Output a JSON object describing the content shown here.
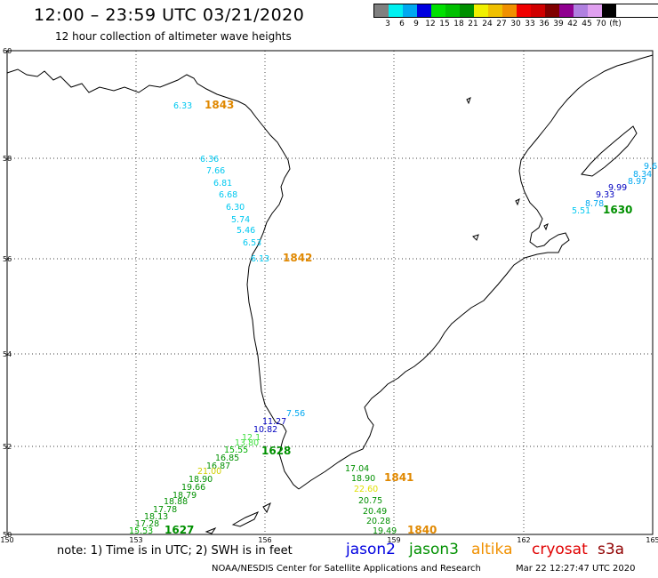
{
  "header": {
    "title": "12:00 – 23:59 UTC 03/21/2020",
    "subtitle": "12 hour collection of altimeter wave heights"
  },
  "legend": {
    "colors": [
      "#808080",
      "#00f0f0",
      "#00a8f0",
      "#0000e0",
      "#00e000",
      "#00c000",
      "#009000",
      "#f0f000",
      "#f0c000",
      "#f09000",
      "#f00000",
      "#d00000",
      "#800000",
      "#900090",
      "#b080e0",
      "#e0a0f0",
      "#000000"
    ],
    "labels": [
      "3",
      "6",
      "9",
      "12",
      "15",
      "18",
      "21",
      "24",
      "27",
      "30",
      "33",
      "36",
      "39",
      "42",
      "45",
      "70",
      "(ft)"
    ]
  },
  "axes": {
    "x_ticks": [
      "150",
      "153",
      "156",
      "159",
      "162",
      "165"
    ],
    "y_ticks": [
      "60",
      "58",
      "56",
      "54",
      "52",
      "50"
    ]
  },
  "tracks": [
    {
      "time": "1843",
      "time_color": "#e08800",
      "points": [
        {
          "v": "6.33",
          "c": "#00c8f0"
        }
      ]
    },
    {
      "time": "1842",
      "time_color": "#e08800",
      "points": [
        {
          "v": "6.36",
          "c": "#00c8f0"
        },
        {
          "v": "7.66",
          "c": "#00c8f0"
        },
        {
          "v": "6.81",
          "c": "#00c8f0"
        },
        {
          "v": "6.68",
          "c": "#00c8f0"
        },
        {
          "v": "6.30",
          "c": "#00c8f0"
        },
        {
          "v": "5.74",
          "c": "#00c8f0"
        },
        {
          "v": "5.46",
          "c": "#00c8f0"
        },
        {
          "v": "6.53",
          "c": "#00c8f0"
        },
        {
          "v": "6.13",
          "c": "#00c8f0"
        }
      ]
    },
    {
      "time": "1630",
      "time_color": "#009000",
      "points": [
        {
          "v": "9.6",
          "c": "#00a8f0"
        },
        {
          "v": "8.34",
          "c": "#00a8f0"
        },
        {
          "v": "8.97",
          "c": "#00a8f0"
        },
        {
          "v": "9.99",
          "c": "#0000c0"
        },
        {
          "v": "9.33",
          "c": "#0000c0"
        },
        {
          "v": "8.78",
          "c": "#00a8f0"
        },
        {
          "v": "5.51",
          "c": "#00c8f0"
        }
      ]
    },
    {
      "time": "1628",
      "time_color": "#009000",
      "points": [
        {
          "v": "7.56",
          "c": "#00a8f0"
        },
        {
          "v": "11.27",
          "c": "#0000c0"
        },
        {
          "v": "10.82",
          "c": "#0000c0"
        },
        {
          "v": "12.1",
          "c": "#40e040"
        },
        {
          "v": "13.80",
          "c": "#40e040"
        },
        {
          "v": "15.55",
          "c": "#00b000"
        },
        {
          "v": "16.85",
          "c": "#009000"
        },
        {
          "v": "16.87",
          "c": "#009000"
        },
        {
          "v": "21.00",
          "c": "#d0d000"
        },
        {
          "v": "18.90",
          "c": "#009000"
        },
        {
          "v": "19.66",
          "c": "#009000"
        }
      ]
    },
    {
      "time": "1627",
      "time_color": "#009000",
      "points": [
        {
          "v": "18.79",
          "c": "#009000"
        },
        {
          "v": "18.88",
          "c": "#009000"
        },
        {
          "v": "17.78",
          "c": "#009000"
        },
        {
          "v": "18.13",
          "c": "#009000"
        },
        {
          "v": "17.28",
          "c": "#009000"
        },
        {
          "v": "15.53",
          "c": "#00b000"
        }
      ]
    },
    {
      "time": "1841",
      "time_color": "#e08800",
      "points": [
        {
          "v": "17.04",
          "c": "#009000"
        },
        {
          "v": "18.90",
          "c": "#009000"
        },
        {
          "v": "22.60",
          "c": "#e0e000"
        },
        {
          "v": "20.75",
          "c": "#009000"
        },
        {
          "v": "20.49",
          "c": "#009000"
        },
        {
          "v": "20.28",
          "c": "#009000"
        },
        {
          "v": "19.49",
          "c": "#009000"
        }
      ]
    },
    {
      "time": "1840",
      "time_color": "#e08800",
      "points": []
    }
  ],
  "footer": {
    "note": "note: 1) Time is in UTC; 2) SWH is in feet",
    "satellites": [
      {
        "name": "jason2",
        "color": "#0000e0"
      },
      {
        "name": "jason3",
        "color": "#009000"
      },
      {
        "name": "altika",
        "color": "#f09000"
      },
      {
        "name": "cryosat",
        "color": "#e00000"
      },
      {
        "name": "s3a",
        "color": "#900000"
      }
    ],
    "credit": "NOAA/NESDIS Center for Satellite Applications and Research",
    "timestamp": "Mar 22 12:27:47 UTC 2020"
  }
}
